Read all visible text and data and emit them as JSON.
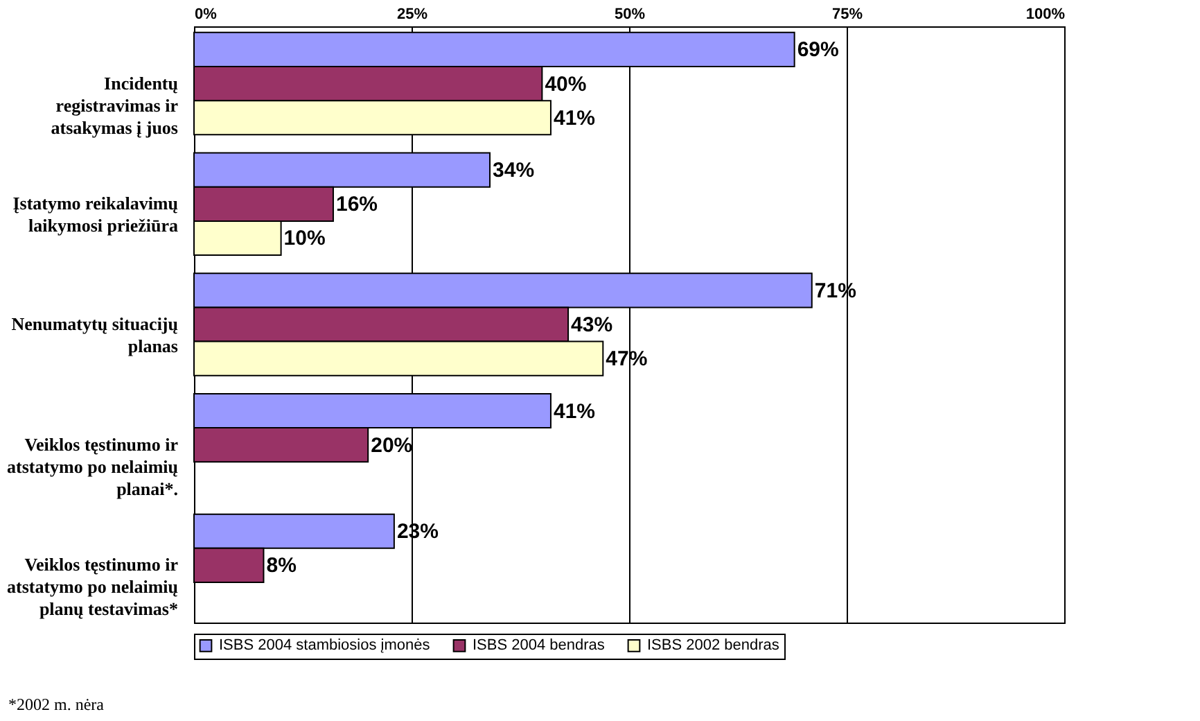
{
  "chart_data": {
    "type": "bar",
    "orientation": "horizontal",
    "categories": [
      "Incidentų registravimas ir atsakymas į juos",
      "Įstatymo reikalavimų laikymosi priežiūra",
      "Nenumatytų situacijų planas",
      "Veiklos tęstinumo ir atstatymo po nelaimių planai*.",
      "Veiklos tęstinumo ir atstatymo po nelaimių planų testavimas*"
    ],
    "series": [
      {
        "name": "ISBS 2004 stambiosios įmonės",
        "color": "#9999ff",
        "values": [
          69,
          34,
          71,
          41,
          23
        ],
        "value_labels": [
          "69%",
          "34%",
          "71%",
          "41%",
          "23%"
        ]
      },
      {
        "name": "ISBS 2004 bendras",
        "color": "#993366",
        "values": [
          40,
          16,
          43,
          20,
          8
        ],
        "value_labels": [
          "40%",
          "16%",
          "43%",
          "20%",
          "8%"
        ]
      },
      {
        "name": "ISBS 2002 bendras",
        "color": "#ffffcc",
        "values": [
          41,
          10,
          47,
          null,
          null
        ],
        "value_labels": [
          "41%",
          "10%",
          "47%",
          null,
          null
        ]
      }
    ],
    "xlim": [
      0,
      100
    ],
    "xticks": [
      {
        "value": 0,
        "label": "0%"
      },
      {
        "value": 25,
        "label": "25%"
      },
      {
        "value": 50,
        "label": "50%"
      },
      {
        "value": 75,
        "label": "75%"
      },
      {
        "value": 100,
        "label": "100%"
      }
    ],
    "grid": "x",
    "legend": "bottom",
    "annotations": [
      "*2002 m. nėra"
    ]
  }
}
